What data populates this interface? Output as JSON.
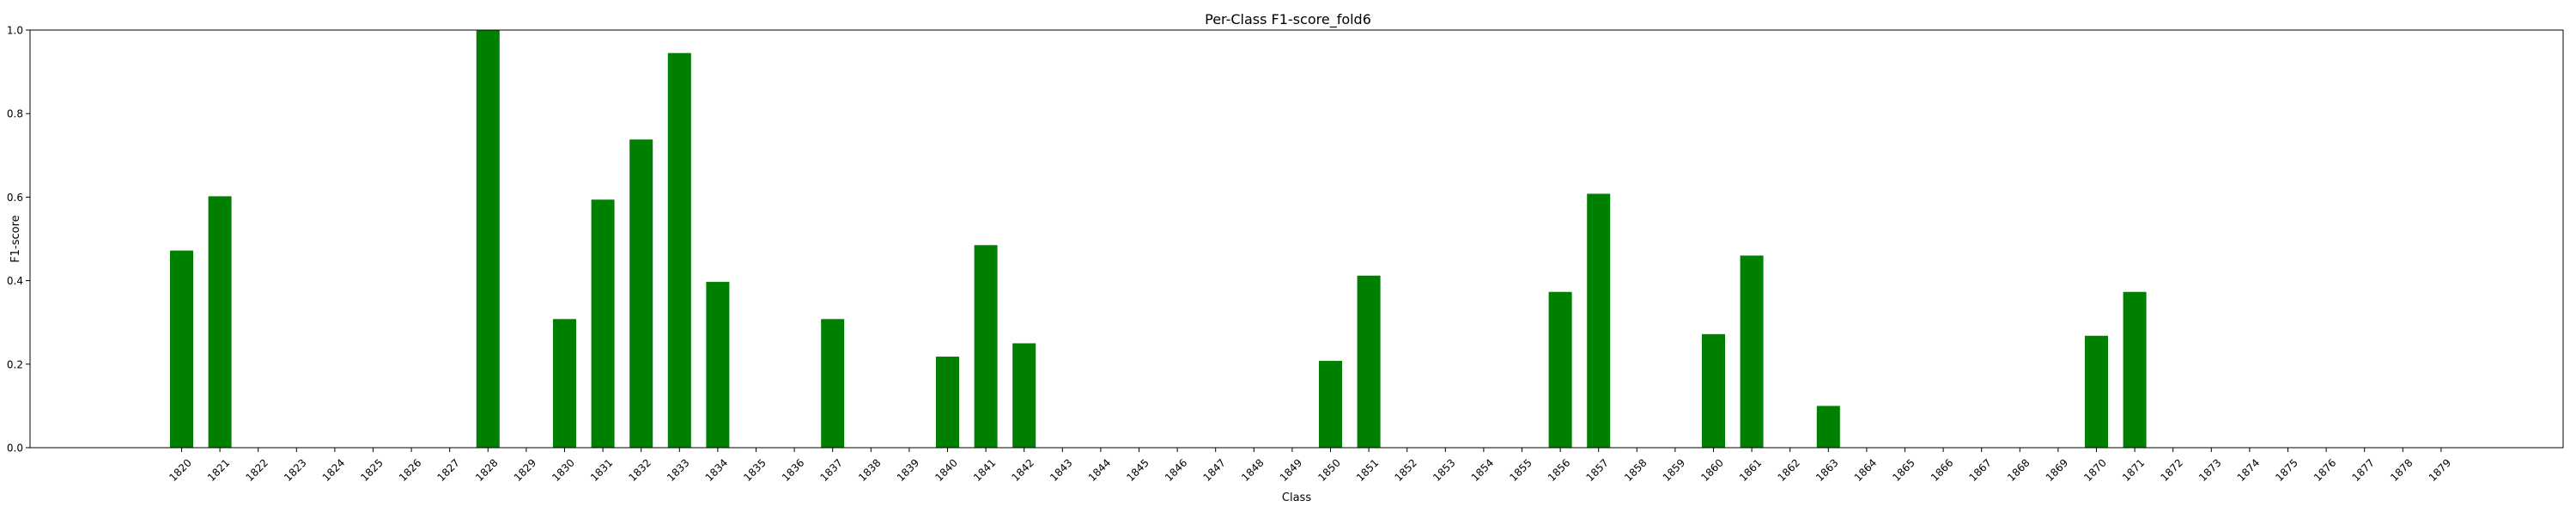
{
  "chart_data": {
    "type": "bar",
    "title": "Per-Class F1-score_fold6",
    "xlabel": "Class",
    "ylabel": "F1-score",
    "ylim": [
      0,
      1.0
    ],
    "yticks": [
      "0.0",
      "0.2",
      "0.4",
      "0.6",
      "0.8",
      "1.0"
    ],
    "bar_color": "#008000",
    "categories": [
      "1820",
      "1821",
      "1822",
      "1823",
      "1824",
      "1825",
      "1826",
      "1827",
      "1828",
      "1829",
      "1830",
      "1831",
      "1832",
      "1833",
      "1834",
      "1835",
      "1836",
      "1837",
      "1838",
      "1839",
      "1840",
      "1841",
      "1842",
      "1843",
      "1844",
      "1845",
      "1846",
      "1847",
      "1848",
      "1849",
      "1850",
      "1851",
      "1852",
      "1853",
      "1854",
      "1855",
      "1856",
      "1857",
      "1858",
      "1859",
      "1860",
      "1861",
      "1862",
      "1863",
      "1864",
      "1865",
      "1866",
      "1867",
      "1868",
      "1869",
      "1870",
      "1871",
      "1872",
      "1873",
      "1874",
      "1875",
      "1876",
      "1877",
      "1878",
      "1879"
    ],
    "values": [
      0.472,
      0.602,
      0,
      0,
      0,
      0,
      0,
      0,
      1.0,
      0,
      0.308,
      0.594,
      0.738,
      0.945,
      0.397,
      0,
      0,
      0.308,
      0,
      0,
      0.218,
      0.485,
      0.25,
      0,
      0,
      0,
      0,
      0,
      0,
      0,
      0.208,
      0.412,
      0,
      0,
      0,
      0,
      0.373,
      0.608,
      0,
      0,
      0.272,
      0.46,
      0,
      0.1,
      0,
      0,
      0,
      0,
      0,
      0,
      0.268,
      0.373,
      0,
      0,
      0,
      0,
      0,
      0,
      0,
      0
    ],
    "grid": false,
    "legend": "none"
  }
}
